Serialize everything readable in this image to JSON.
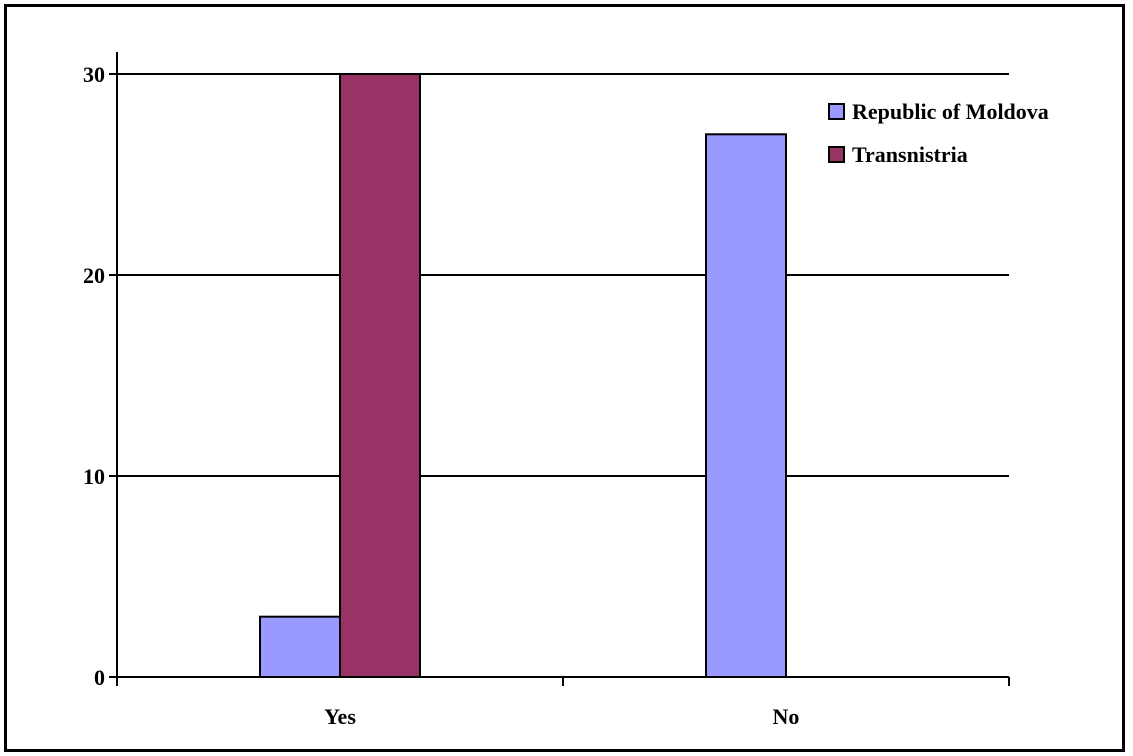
{
  "chart_data": {
    "type": "bar",
    "title": "",
    "xlabel": "",
    "ylabel": "",
    "categories": [
      "Yes",
      "No"
    ],
    "series": [
      {
        "name": "Republic of Moldova",
        "values": [
          3,
          27
        ],
        "color": "#9999ff"
      },
      {
        "name": "Transnistria",
        "values": [
          30,
          0
        ],
        "color": "#993366"
      }
    ],
    "ylim": [
      0,
      30
    ],
    "yticks": [
      "0",
      "10",
      "20",
      "30"
    ],
    "grid": true,
    "legend_position": "top-right"
  }
}
